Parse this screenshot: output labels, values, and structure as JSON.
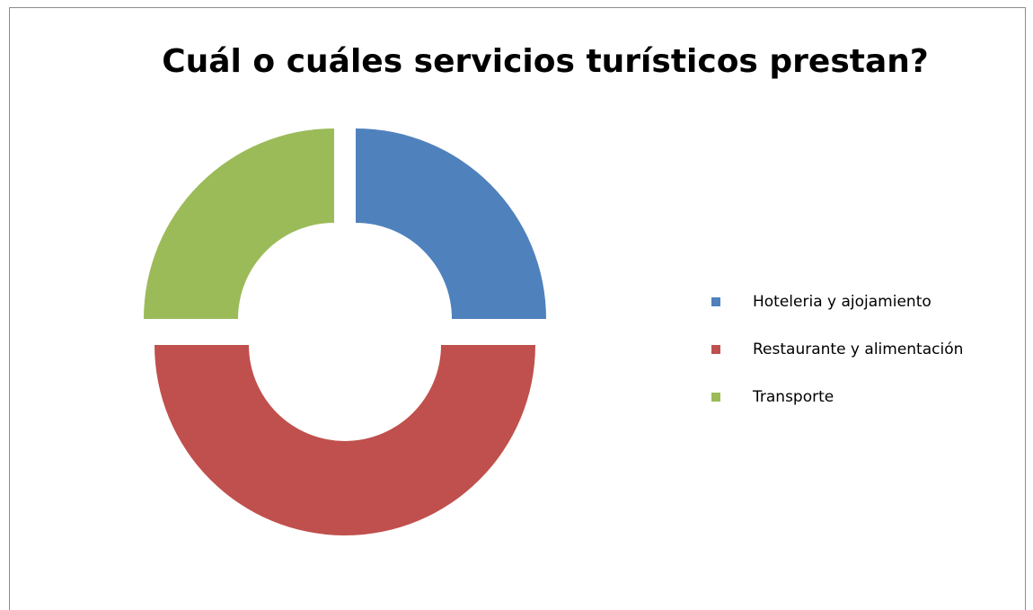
{
  "chart_data": {
    "type": "donut",
    "title": "Cuál o cuáles servicios turísticos prestan?",
    "categories": [
      "Hoteleria  y ajojamiento",
      "Restaurante  y alimentación",
      "Transporte"
    ],
    "values": [
      25,
      50,
      25
    ],
    "colors": [
      "#4f81bd",
      "#c0504d",
      "#9bbb59"
    ],
    "legend": "right"
  }
}
